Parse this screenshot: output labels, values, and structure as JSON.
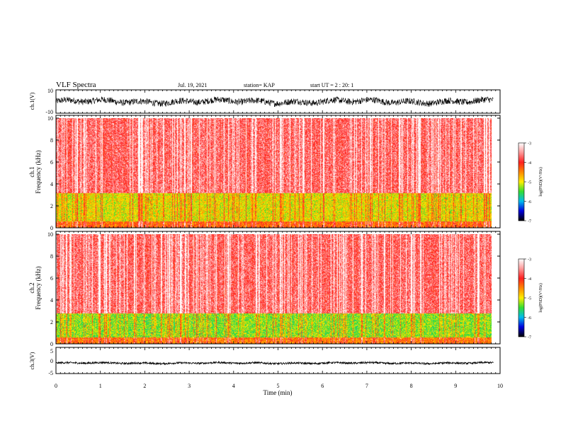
{
  "header": {
    "title": "VLF Spectra",
    "date": "Jul. 19, 2021",
    "station": "station= KAP",
    "start": "start  UT =   2 : 20: 1"
  },
  "colorbar": {
    "label": "log(PSD)(V²/Hz)",
    "ticks": [
      "-3",
      "-4",
      "-5",
      "-6",
      "-7"
    ],
    "colors": [
      "#ffffff",
      "#ff9999",
      "#ff2020",
      "#ff8800",
      "#ffee00",
      "#33dd33",
      "#00bbee",
      "#0000dd",
      "#000000"
    ]
  },
  "chart_data": [
    {
      "type": "line",
      "id": "ch1-waveform",
      "ylabel": "ch.1(V)",
      "ylim": [
        -10,
        10
      ],
      "yticks": [
        "10",
        "-10"
      ],
      "xlim": [
        0,
        10
      ],
      "level": 0,
      "noise_amplitude": 4,
      "color": "#000000"
    },
    {
      "type": "heatmap",
      "id": "ch1-spectrogram",
      "ylabel": "ch.1",
      "ylabel2": "Frequency (kHz)",
      "ylim": [
        0,
        10
      ],
      "yticks": [
        "0",
        "2",
        "4",
        "6",
        "8",
        "10"
      ],
      "xlim": [
        0,
        10
      ],
      "data_end_min": 9.8,
      "bands": [
        {
          "from_khz": 0,
          "to_khz": 0.6,
          "log_psd": -4.2
        },
        {
          "from_khz": 0.6,
          "to_khz": 3.2,
          "log_psd": -4.9
        },
        {
          "from_khz": 3.2,
          "to_khz": 10,
          "log_psd": -3.6
        }
      ]
    },
    {
      "type": "heatmap",
      "id": "ch2-spectrogram",
      "ylabel": "ch.2",
      "ylabel2": "Frequency (kHz)",
      "ylim": [
        0,
        10
      ],
      "yticks": [
        "0",
        "2",
        "4",
        "6",
        "8",
        "10"
      ],
      "xlim": [
        0,
        10
      ],
      "data_end_min": 9.8,
      "bands": [
        {
          "from_khz": 0,
          "to_khz": 0.6,
          "log_psd": -4.3
        },
        {
          "from_khz": 0.6,
          "to_khz": 2.8,
          "log_psd": -5.2
        },
        {
          "from_khz": 2.8,
          "to_khz": 10,
          "log_psd": -3.6
        }
      ]
    },
    {
      "type": "line",
      "id": "ch3-waveform",
      "ylabel": "ch.3(V)",
      "ylim": [
        -5,
        5
      ],
      "yticks": [
        "5",
        "0",
        "-5"
      ],
      "xlim": [
        0,
        10
      ],
      "level": -1,
      "noise_amplitude": 0.5,
      "color": "#000000"
    }
  ],
  "x_axis": {
    "label": "Time (min)",
    "ticks": [
      "0",
      "1",
      "2",
      "3",
      "4",
      "5",
      "6",
      "7",
      "8",
      "9",
      "10"
    ]
  }
}
